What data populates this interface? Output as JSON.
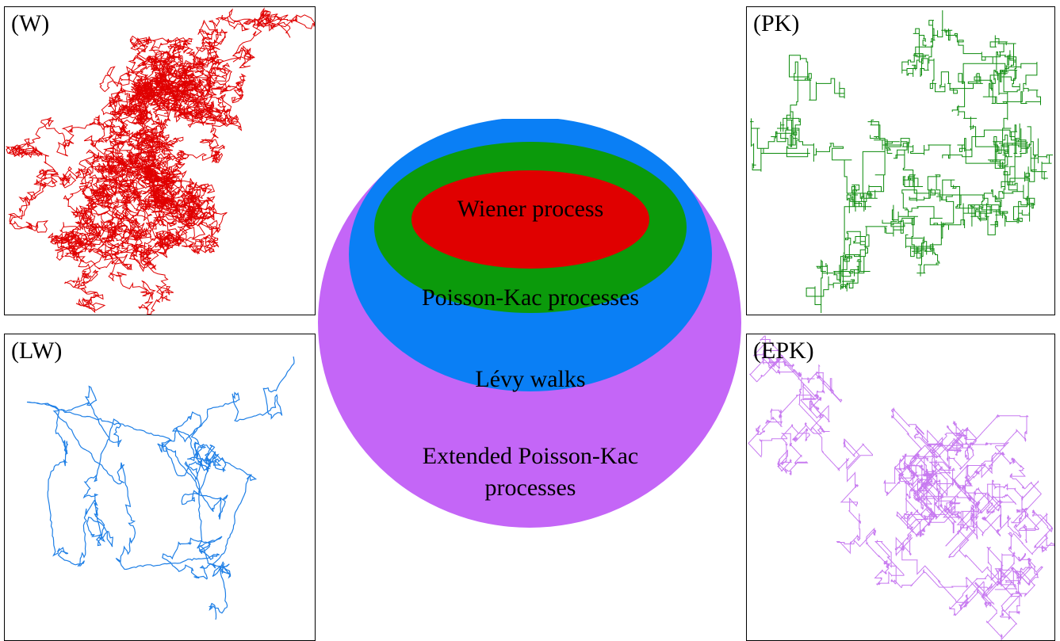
{
  "panels": {
    "w": {
      "label": "(W)",
      "color": "#e00000"
    },
    "pk": {
      "label": "(PK)",
      "color": "#0a8a0a"
    },
    "lw": {
      "label": "(LW)",
      "color": "#1e7fe6"
    },
    "epk": {
      "label": "(EPK)",
      "color": "#c77af0"
    }
  },
  "venn": {
    "outer": {
      "line1": "Extended Poisson-Kac",
      "line2": "processes",
      "color": "#c466f7"
    },
    "middle": {
      "text": "Lévy walks",
      "color": "#0a7ff5"
    },
    "inner": {
      "text": "Poisson-Kac processes",
      "color": "#0b9a0b"
    },
    "core": {
      "text": "Wiener process",
      "color": "#e00000"
    }
  }
}
